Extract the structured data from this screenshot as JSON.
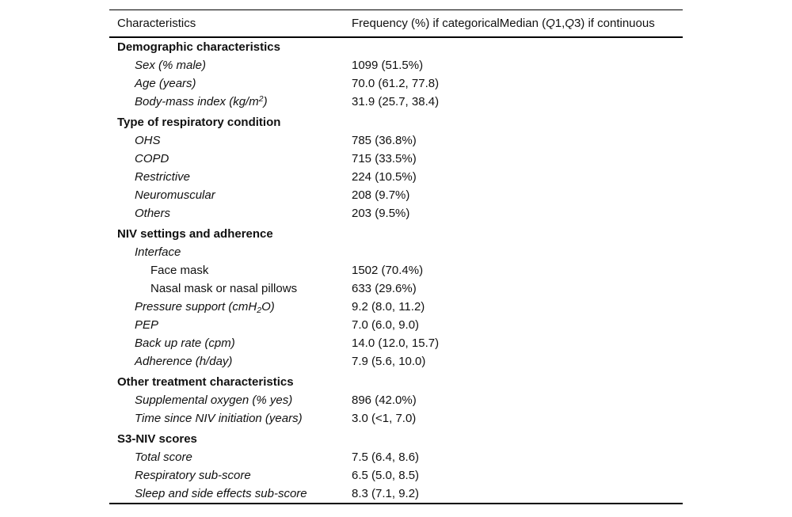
{
  "table": {
    "header": {
      "col1": "Characteristics",
      "col2_segments": [
        {
          "text": "Frequency (%) if categoricalMedian ("
        },
        {
          "text": "Q",
          "italic": true
        },
        {
          "text": "1,"
        },
        {
          "text": "Q",
          "italic": true
        },
        {
          "text": "3) if continuous"
        }
      ]
    },
    "rows": [
      {
        "level": 0,
        "bold": true,
        "gap": false,
        "segments": [
          {
            "text": "Demographic characteristics"
          }
        ],
        "value": ""
      },
      {
        "level": 1,
        "italic": true,
        "segments": [
          {
            "text": "Sex (% male)"
          }
        ],
        "value": "1099 (51.5%)"
      },
      {
        "level": 1,
        "italic": true,
        "segments": [
          {
            "text": "Age (years)"
          }
        ],
        "value": "70.0 (61.2, 77.8)"
      },
      {
        "level": 1,
        "italic": true,
        "segments": [
          {
            "text": "Body-mass index (kg/m"
          },
          {
            "text": "2",
            "sup": true
          },
          {
            "text": ")"
          }
        ],
        "value": "31.9 (25.7, 38.4)"
      },
      {
        "level": 0,
        "bold": true,
        "gap": true,
        "segments": [
          {
            "text": "Type of respiratory condition"
          }
        ],
        "value": ""
      },
      {
        "level": 1,
        "italic": true,
        "segments": [
          {
            "text": "OHS"
          }
        ],
        "value": "785 (36.8%)"
      },
      {
        "level": 1,
        "italic": true,
        "segments": [
          {
            "text": "COPD"
          }
        ],
        "value": "715 (33.5%)"
      },
      {
        "level": 1,
        "italic": true,
        "segments": [
          {
            "text": "Restrictive"
          }
        ],
        "value": "224 (10.5%)"
      },
      {
        "level": 1,
        "italic": true,
        "segments": [
          {
            "text": "Neuromuscular"
          }
        ],
        "value": "208 (9.7%)"
      },
      {
        "level": 1,
        "italic": true,
        "segments": [
          {
            "text": "Others"
          }
        ],
        "value": "203 (9.5%)"
      },
      {
        "level": 0,
        "bold": true,
        "gap": true,
        "segments": [
          {
            "text": "NIV settings and adherence"
          }
        ],
        "value": ""
      },
      {
        "level": 1,
        "italic": true,
        "segments": [
          {
            "text": "Interface"
          }
        ],
        "value": ""
      },
      {
        "level": 2,
        "segments": [
          {
            "text": "Face mask"
          }
        ],
        "value": "1502 (70.4%)"
      },
      {
        "level": 2,
        "segments": [
          {
            "text": "Nasal mask or nasal pillows"
          }
        ],
        "value": "633 (29.6%)"
      },
      {
        "level": 1,
        "italic": true,
        "segments": [
          {
            "text": "Pressure support (cmH"
          },
          {
            "text": "2",
            "sub": true
          },
          {
            "text": "O)"
          }
        ],
        "value": "9.2 (8.0, 11.2)"
      },
      {
        "level": 1,
        "italic": true,
        "segments": [
          {
            "text": "PEP"
          }
        ],
        "value": "7.0 (6.0, 9.0)"
      },
      {
        "level": 1,
        "italic": true,
        "segments": [
          {
            "text": "Back up rate (cpm)"
          }
        ],
        "value": "14.0 (12.0, 15.7)"
      },
      {
        "level": 1,
        "italic": true,
        "segments": [
          {
            "text": "Adherence (h/day)"
          }
        ],
        "value": "7.9 (5.6, 10.0)"
      },
      {
        "level": 0,
        "bold": true,
        "gap": true,
        "segments": [
          {
            "text": "Other treatment characteristics"
          }
        ],
        "value": ""
      },
      {
        "level": 1,
        "italic": true,
        "segments": [
          {
            "text": "Supplemental oxygen (% yes)"
          }
        ],
        "value": "896 (42.0%)"
      },
      {
        "level": 1,
        "italic": true,
        "segments": [
          {
            "text": "Time since NIV initiation (years)"
          }
        ],
        "value": "3.0 (<1, 7.0)"
      },
      {
        "level": 0,
        "bold": true,
        "gap": true,
        "segments": [
          {
            "text": "S3-NIV scores"
          }
        ],
        "value": ""
      },
      {
        "level": 1,
        "italic": true,
        "segments": [
          {
            "text": "Total score"
          }
        ],
        "value": "7.5 (6.4, 8.6)"
      },
      {
        "level": 1,
        "italic": true,
        "segments": [
          {
            "text": "Respiratory sub-score"
          }
        ],
        "value": "6.5 (5.0, 8.5)"
      },
      {
        "level": 1,
        "italic": true,
        "segments": [
          {
            "text": "Sleep and side effects sub-score"
          }
        ],
        "value": "8.3 (7.1, 9.2)"
      }
    ]
  }
}
